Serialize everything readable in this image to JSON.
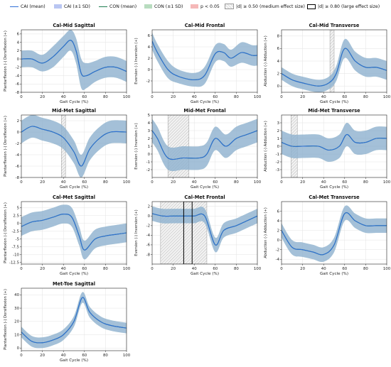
{
  "legend": {
    "items": [
      {
        "key": "cai_mean",
        "label": "CAI (mean)",
        "kind": "line",
        "color": "#2f6fd6"
      },
      {
        "key": "cai_sd",
        "label": "CAI (±1 SD)",
        "kind": "fill",
        "color": "#9fb2ee"
      },
      {
        "key": "con_mean",
        "label": "CON (mean)",
        "kind": "line",
        "color": "#1e7d4f"
      },
      {
        "key": "con_sd",
        "label": "CON (±1 SD)",
        "kind": "fill",
        "color": "#a7d5b0"
      },
      {
        "key": "p",
        "label": "p < 0.05",
        "kind": "fill",
        "color": "#f5b8b8"
      },
      {
        "key": "medium",
        "label": "|d| ≥ 0.50 (medium effect size)",
        "kind": "hatch",
        "color": "#bbbbbb"
      },
      {
        "key": "large",
        "label": "|d| ≥ 0.80 (large effect size)",
        "kind": "box",
        "color": "#000000"
      }
    ]
  },
  "colors": {
    "cai": "#2f6fd6",
    "cai_band": "#8fa5ea",
    "con": "#1e7d4f",
    "con_band": "#8fcb9b",
    "grid": "#e3e3e3"
  },
  "chart_data": [
    {
      "type": "line",
      "title": "Cal-Mid Sagittal",
      "xlabel": "Gait Cycle (%)",
      "ylabel": "Plantarflexion (-) Dorsiflexion (+)",
      "xlim": [
        0,
        100
      ],
      "ylim": [
        -8,
        7
      ],
      "xticks": [
        0,
        20,
        40,
        60,
        80,
        100
      ],
      "yticks": [
        -8,
        -6,
        -4,
        -2,
        0,
        2,
        4,
        6
      ],
      "x": [
        0,
        10,
        20,
        30,
        40,
        47,
        52,
        57,
        62,
        70,
        80,
        90,
        100
      ],
      "series": [
        {
          "name": "CAI (mean)",
          "values": [
            0,
            0,
            -1,
            0.5,
            3,
            4.5,
            2,
            -3.5,
            -4,
            -3,
            -2,
            -2,
            -3
          ],
          "sd": [
            2,
            2,
            2,
            2.5,
            2.5,
            2.5,
            3,
            3.5,
            3,
            2.5,
            2.5,
            2.5,
            2.5
          ]
        },
        {
          "name": "CON (mean)",
          "values": [
            0,
            0,
            -1,
            0.5,
            3,
            4.5,
            2,
            -3.5,
            -4,
            -3,
            -2,
            -2,
            -3
          ],
          "sd": [
            2,
            2,
            2,
            2.5,
            2.5,
            2.5,
            3,
            3.5,
            3,
            2.5,
            2.5,
            2.5,
            2.5
          ]
        }
      ],
      "medium_regions": [],
      "large_regions": []
    },
    {
      "type": "line",
      "title": "Cal-Mid Frontal",
      "xlabel": "Gait Cycle (%)",
      "ylabel": "Eversion (-) Inversion (+)",
      "xlim": [
        0,
        100
      ],
      "ylim": [
        -4,
        7
      ],
      "xticks": [
        0,
        20,
        40,
        60,
        80,
        100
      ],
      "yticks": [
        -2,
        0,
        2,
        4,
        6
      ],
      "x": [
        0,
        5,
        15,
        25,
        40,
        50,
        60,
        68,
        75,
        85,
        95,
        100
      ],
      "series": [
        {
          "name": "CAI (mean)",
          "values": [
            5,
            3,
            0,
            -1.2,
            -1.8,
            -1,
            2.8,
            3,
            2,
            3,
            2.5,
            2.5
          ],
          "sd": [
            1.5,
            1.5,
            1.5,
            1.2,
            1.2,
            1.5,
            1.5,
            1.5,
            1.5,
            1.8,
            1.8,
            1.8
          ]
        },
        {
          "name": "CON (mean)",
          "values": [
            5,
            3,
            0,
            -1.2,
            -1.8,
            -1,
            2.8,
            3,
            2,
            3,
            2.5,
            2.5
          ],
          "sd": [
            1.5,
            1.5,
            1.5,
            1.2,
            1.2,
            1.5,
            1.5,
            1.5,
            1.5,
            1.8,
            1.8,
            1.8
          ]
        }
      ],
      "medium_regions": [],
      "large_regions": []
    },
    {
      "type": "line",
      "title": "Cal-Mid Transverse",
      "xlabel": "Gait Cycle (%)",
      "ylabel": "Abduction (-) Adduction (+)",
      "xlim": [
        0,
        100
      ],
      "ylim": [
        -1,
        9
      ],
      "xticks": [
        0,
        20,
        40,
        60,
        80,
        100
      ],
      "yticks": [
        0,
        2,
        4,
        6,
        8
      ],
      "x": [
        0,
        10,
        20,
        35,
        45,
        52,
        60,
        70,
        80,
        90,
        100
      ],
      "series": [
        {
          "name": "CAI (mean)",
          "values": [
            2,
            1,
            0.5,
            0,
            0.5,
            2,
            6,
            4,
            3,
            3,
            2.5
          ],
          "sd": [
            1,
            1,
            1,
            1,
            1,
            1.2,
            1.5,
            1.5,
            1.5,
            1.5,
            1.5
          ]
        },
        {
          "name": "CON (mean)",
          "values": [
            2,
            1,
            0.5,
            0,
            0.5,
            2,
            6,
            4,
            3,
            3,
            2.5
          ],
          "sd": [
            1,
            1,
            1,
            1,
            1,
            1.2,
            1.5,
            1.5,
            1.5,
            1.5,
            1.5
          ]
        }
      ],
      "medium_regions": [
        [
          46,
          50
        ]
      ],
      "large_regions": []
    },
    {
      "type": "line",
      "title": "Mid-Met Sagittal",
      "xlabel": "Gait Cycle (%)",
      "ylabel": "Plantarflexion (-) Dorsiflexion (+)",
      "xlim": [
        0,
        100
      ],
      "ylim": [
        -8,
        3
      ],
      "xticks": [
        0,
        20,
        40,
        60,
        80,
        100
      ],
      "yticks": [
        -8,
        -6,
        -4,
        -2,
        0,
        2
      ],
      "x": [
        0,
        10,
        20,
        30,
        40,
        50,
        57,
        65,
        75,
        85,
        100
      ],
      "series": [
        {
          "name": "CAI (mean)",
          "values": [
            0,
            1,
            0.5,
            0,
            -1,
            -3.5,
            -6,
            -3,
            -1,
            0,
            0
          ],
          "sd": [
            2,
            2,
            2,
            2,
            2,
            2,
            2,
            2,
            2,
            2,
            2
          ]
        },
        {
          "name": "CON (mean)",
          "values": [
            0,
            1,
            0.5,
            0,
            -1,
            -3.5,
            -6,
            -3,
            -1,
            0,
            0
          ],
          "sd": [
            2,
            2,
            2,
            2,
            2,
            2,
            2,
            2,
            2,
            2,
            2
          ]
        }
      ],
      "medium_regions": [
        [
          38,
          42
        ]
      ],
      "large_regions": []
    },
    {
      "type": "line",
      "title": "Mid-Met Frontal",
      "xlabel": "Gait Cycle (%)",
      "ylabel": "Eversion (-) Inversion (+)",
      "xlim": [
        0,
        100
      ],
      "ylim": [
        -3,
        5
      ],
      "xticks": [
        0,
        20,
        40,
        60,
        80,
        100
      ],
      "yticks": [
        -2,
        -1,
        0,
        1,
        2,
        3,
        4,
        5
      ],
      "x": [
        0,
        5,
        15,
        30,
        45,
        52,
        60,
        70,
        80,
        90,
        100
      ],
      "series": [
        {
          "name": "CAI (mean)",
          "values": [
            3,
            2,
            -0.5,
            -0.5,
            -0.5,
            0,
            2,
            1,
            2,
            2.5,
            3
          ],
          "sd": [
            1.5,
            1.5,
            1.5,
            1.5,
            1.5,
            1.5,
            1.5,
            1.5,
            1.5,
            1.5,
            1.5
          ]
        },
        {
          "name": "CON (mean)",
          "values": [
            3,
            2,
            -0.5,
            -0.5,
            -0.5,
            0,
            2,
            1,
            2,
            2.5,
            3
          ],
          "sd": [
            1.5,
            1.5,
            1.5,
            1.5,
            1.5,
            1.5,
            1.5,
            1.5,
            1.5,
            1.5,
            1.5
          ]
        }
      ],
      "medium_regions": [
        [
          15,
          35
        ]
      ],
      "large_regions": []
    },
    {
      "type": "line",
      "title": "Mid-Met Transverse",
      "xlabel": "Gait Cycle (%)",
      "ylabel": "Abduction (-) Adduction (+)",
      "xlim": [
        0,
        100
      ],
      "ylim": [
        -4,
        4
      ],
      "xticks": [
        0,
        20,
        40,
        60,
        80,
        100
      ],
      "yticks": [
        -3,
        -2,
        -1,
        0,
        1,
        2,
        3
      ],
      "x": [
        0,
        10,
        20,
        35,
        45,
        55,
        62,
        70,
        80,
        90,
        100
      ],
      "series": [
        {
          "name": "CAI (mean)",
          "values": [
            0.5,
            0,
            0,
            0,
            -0.5,
            0,
            1.5,
            0.5,
            0.5,
            1,
            1
          ],
          "sd": [
            1.5,
            1.5,
            1.5,
            1.5,
            1.5,
            1.5,
            1.5,
            1.5,
            1.5,
            1.5,
            1.5
          ]
        },
        {
          "name": "CON (mean)",
          "values": [
            0.5,
            0,
            0,
            0,
            -0.5,
            0,
            1.5,
            0.5,
            0.5,
            1,
            1
          ],
          "sd": [
            1.5,
            1.5,
            1.5,
            1.5,
            1.5,
            1.5,
            1.5,
            1.5,
            1.5,
            1.5,
            1.5
          ]
        }
      ],
      "medium_regions": [
        [
          9,
          15
        ]
      ],
      "large_regions": []
    },
    {
      "type": "line",
      "title": "Cal-Met Sagittal",
      "xlabel": "Gait Cycle (%)",
      "ylabel": "Plantarflexion (-) Dorsiflexion (+)",
      "xlim": [
        0,
        100
      ],
      "ylim": [
        -13,
        7
      ],
      "xticks": [
        0,
        20,
        40,
        60,
        80,
        100
      ],
      "yticks": [
        -12.5,
        -10,
        -7.5,
        -5,
        -2.5,
        0,
        2.5,
        5
      ],
      "x": [
        0,
        10,
        20,
        30,
        40,
        48,
        55,
        60,
        70,
        80,
        90,
        100
      ],
      "series": [
        {
          "name": "CAI (mean)",
          "values": [
            -1,
            0.5,
            1,
            2,
            3,
            2,
            -4,
            -8.5,
            -5,
            -4,
            -3.5,
            -3
          ],
          "sd": [
            3,
            3,
            3,
            3,
            3,
            3,
            3,
            3,
            3,
            3,
            3,
            3
          ]
        },
        {
          "name": "CON (mean)",
          "values": [
            -1,
            0.5,
            1,
            2,
            3,
            2,
            -4,
            -8.5,
            -5,
            -4,
            -3.5,
            -3
          ],
          "sd": [
            3,
            3,
            3,
            3,
            3,
            3,
            3,
            3,
            3,
            3,
            3,
            3
          ]
        }
      ],
      "medium_regions": [],
      "large_regions": []
    },
    {
      "type": "line",
      "title": "Cal-Met Frontal",
      "xlabel": "Gait Cycle (%)",
      "ylabel": "Eversion (-) Inversion (+)",
      "xlim": [
        0,
        100
      ],
      "ylim": [
        -10,
        3
      ],
      "xticks": [
        0,
        20,
        40,
        60,
        80,
        100
      ],
      "yticks": [
        -8,
        -6,
        -4,
        -2,
        0,
        2
      ],
      "x": [
        0,
        10,
        20,
        30,
        40,
        50,
        60,
        68,
        80,
        90,
        100
      ],
      "series": [
        {
          "name": "CAI (mean)",
          "values": [
            0.5,
            0,
            0,
            0,
            0,
            0,
            -6,
            -3,
            -2,
            -1,
            0
          ],
          "sd": [
            1.5,
            1.5,
            1.5,
            1.5,
            1.5,
            1.5,
            1.5,
            1.5,
            1.5,
            1.5,
            1.5
          ]
        },
        {
          "name": "CON (mean)",
          "values": [
            0.5,
            0,
            0,
            0,
            0,
            0,
            -6,
            -3,
            -2,
            -1,
            0
          ],
          "sd": [
            1.5,
            1.5,
            1.5,
            1.5,
            1.5,
            1.5,
            1.5,
            1.5,
            1.5,
            1.5,
            1.5
          ]
        }
      ],
      "medium_regions": [
        [
          8,
          52
        ]
      ],
      "large_regions": [
        [
          30,
          38
        ]
      ]
    },
    {
      "type": "line",
      "title": "Cal-Met Transverse",
      "xlabel": "Gait Cycle (%)",
      "ylabel": "Abduction (-) Adduction (+)",
      "xlim": [
        0,
        100
      ],
      "ylim": [
        -5,
        8
      ],
      "xticks": [
        0,
        20,
        40,
        60,
        80,
        100
      ],
      "yticks": [
        -4,
        -2,
        0,
        2,
        4,
        6
      ],
      "x": [
        0,
        10,
        20,
        30,
        40,
        50,
        60,
        70,
        80,
        90,
        100
      ],
      "series": [
        {
          "name": "CAI (mean)",
          "values": [
            2,
            -1.5,
            -2,
            -2.5,
            -3,
            -1,
            5.5,
            4,
            3,
            3,
            3
          ],
          "sd": [
            1.5,
            1.5,
            1.5,
            1.5,
            1.5,
            1.5,
            1.5,
            1.5,
            1.5,
            1.5,
            1.5
          ]
        },
        {
          "name": "CON (mean)",
          "values": [
            2,
            -1.5,
            -2,
            -2.5,
            -3,
            -1,
            5.5,
            4,
            3,
            3,
            3
          ],
          "sd": [
            1.5,
            1.5,
            1.5,
            1.5,
            1.5,
            1.5,
            1.5,
            1.5,
            1.5,
            1.5,
            1.5
          ]
        }
      ],
      "medium_regions": [],
      "large_regions": []
    },
    {
      "type": "line",
      "title": "Met-Toe Sagittal",
      "xlabel": "Gait Cycle (%)",
      "ylabel": "Plantarflexion (-) Dorsiflexion (+)",
      "xlim": [
        0,
        100
      ],
      "ylim": [
        -2,
        45
      ],
      "xticks": [
        0,
        20,
        40,
        60,
        80,
        100
      ],
      "yticks": [
        0,
        10,
        20,
        30,
        40
      ],
      "x": [
        0,
        10,
        20,
        30,
        40,
        50,
        58,
        65,
        75,
        85,
        100
      ],
      "series": [
        {
          "name": "CAI (mean)",
          "values": [
            12,
            5,
            4,
            6,
            10,
            20,
            38,
            27,
            20,
            17,
            15
          ],
          "sd": [
            4,
            4,
            4,
            4,
            4,
            4,
            4,
            4,
            4,
            4,
            4
          ]
        },
        {
          "name": "CON (mean)",
          "values": [
            12,
            5,
            4,
            6,
            10,
            20,
            38,
            27,
            20,
            17,
            15
          ],
          "sd": [
            4,
            4,
            4,
            4,
            4,
            4,
            4,
            4,
            4,
            4,
            4
          ]
        }
      ],
      "medium_regions": [],
      "large_regions": []
    }
  ]
}
